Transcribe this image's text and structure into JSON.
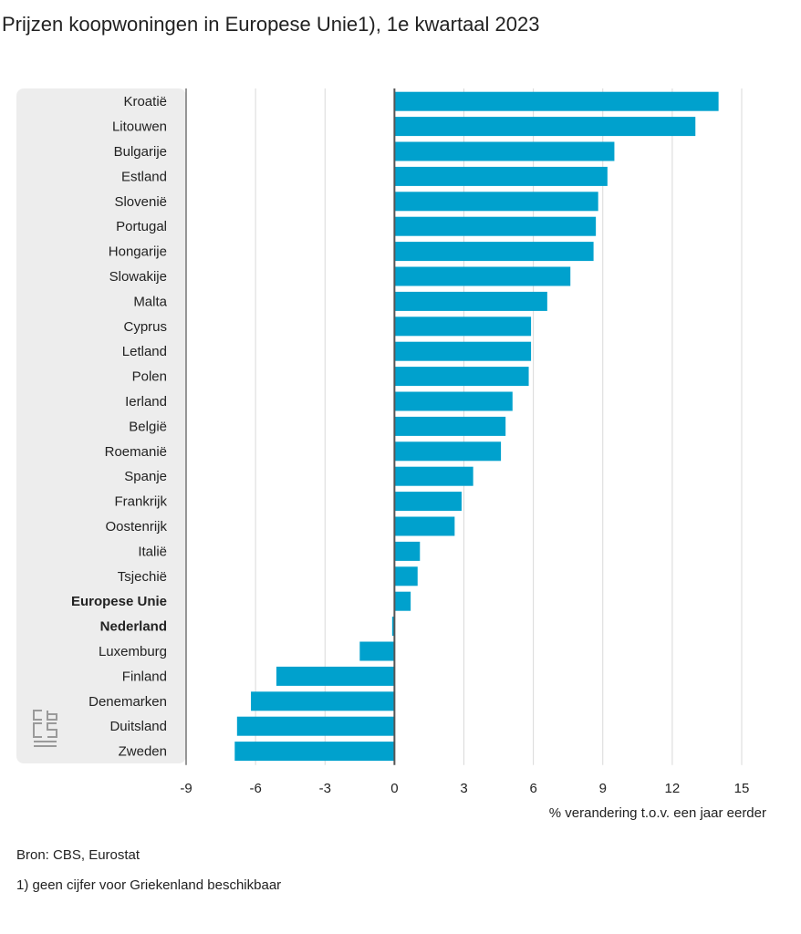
{
  "title": "Prijzen koopwoningen in Europese Unie1), 1e kwartaal 2023",
  "logo": "cbs-logo",
  "source": "Bron: CBS, Eurostat",
  "footnote": "1) geen cijfer voor Griekenland beschikbaar",
  "colors": {
    "bar": "#00a1cd",
    "grid": "#d9d9d9",
    "axis": "#555555",
    "panel": "#ededed"
  },
  "chart_data": {
    "type": "bar",
    "orientation": "horizontal",
    "title": "Prijzen koopwoningen in Europese Unie1), 1e kwartaal 2023",
    "xlabel": "% verandering t.o.v. een jaar eerder",
    "ylabel": "",
    "xlim": [
      -9,
      15
    ],
    "xticks": [
      -9,
      -6,
      -3,
      0,
      3,
      6,
      9,
      12,
      15
    ],
    "grid": true,
    "categories": [
      "Kroatië",
      "Litouwen",
      "Bulgarije",
      "Estland",
      "Slovenië",
      "Portugal",
      "Hongarije",
      "Slowakije",
      "Malta",
      "Cyprus",
      "Letland",
      "Polen",
      "Ierland",
      "België",
      "Roemanië",
      "Spanje",
      "Frankrijk",
      "Oostenrijk",
      "Italië",
      "Tsjechië",
      "Europese Unie",
      "Nederland",
      "Luxemburg",
      "Finland",
      "Denemarken",
      "Duitsland",
      "Zweden"
    ],
    "values": [
      14.0,
      13.0,
      9.5,
      9.2,
      8.8,
      8.7,
      8.6,
      7.6,
      6.6,
      5.9,
      5.9,
      5.8,
      5.1,
      4.8,
      4.6,
      3.4,
      2.9,
      2.6,
      1.1,
      1.0,
      0.7,
      -0.1,
      -1.5,
      -5.1,
      -6.2,
      -6.8,
      -6.9
    ],
    "highlighted": [
      "Europese Unie",
      "Nederland"
    ]
  }
}
